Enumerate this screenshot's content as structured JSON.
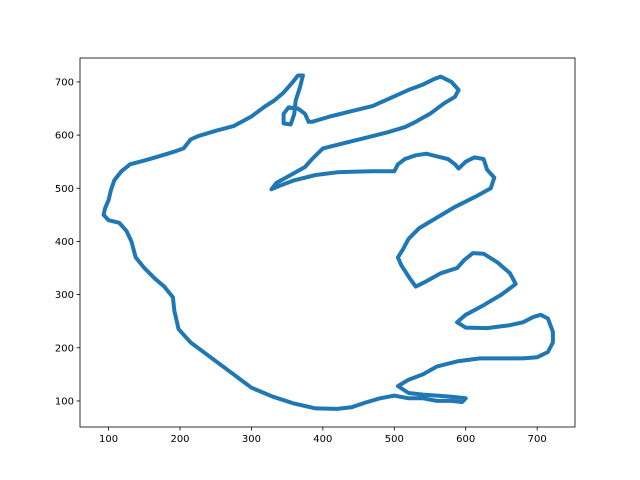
{
  "chart_data": {
    "type": "line",
    "color": "#1f77b4",
    "x": [
      380,
      375,
      365,
      352,
      345,
      345,
      355,
      360,
      362,
      368,
      372,
      365,
      358,
      345,
      332,
      320,
      300,
      275,
      250,
      225,
      215,
      205,
      190,
      170,
      150,
      130,
      118,
      108,
      103,
      100,
      95,
      93,
      100,
      115,
      125,
      132,
      138,
      150,
      165,
      178,
      190,
      192,
      198,
      215,
      240,
      270,
      300,
      330,
      360,
      390,
      420,
      440,
      460,
      480,
      500,
      520,
      540,
      560,
      580,
      595,
      600,
      580,
      560,
      540,
      520,
      505,
      520,
      540,
      560,
      590,
      620,
      650,
      680,
      700,
      715,
      722,
      722,
      715,
      705,
      695,
      680,
      660,
      630,
      600,
      588,
      600,
      625,
      650,
      670,
      662,
      645,
      625,
      610,
      598,
      588,
      565,
      545,
      530,
      522,
      510,
      505,
      512,
      520,
      535,
      560,
      585,
      615,
      635,
      640,
      630,
      625,
      612,
      600,
      590,
      585,
      575,
      560,
      545,
      530,
      515,
      505,
      500,
      470,
      440,
      420,
      390,
      360,
      340,
      328,
      335,
      355,
      375,
      385,
      400,
      430,
      460,
      490,
      515,
      530,
      550,
      570,
      585,
      590,
      580,
      565,
      555,
      540,
      520,
      495,
      470,
      440,
      410,
      385,
      380
    ],
    "values": [
      625,
      640,
      650,
      652,
      640,
      622,
      620,
      640,
      665,
      690,
      712,
      712,
      700,
      680,
      665,
      655,
      635,
      617,
      608,
      598,
      592,
      575,
      568,
      560,
      552,
      545,
      532,
      515,
      495,
      478,
      462,
      450,
      440,
      435,
      420,
      400,
      370,
      350,
      330,
      315,
      295,
      270,
      235,
      210,
      185,
      155,
      125,
      108,
      95,
      86,
      85,
      88,
      97,
      105,
      110,
      105,
      105,
      100,
      100,
      98,
      105,
      108,
      110,
      112,
      115,
      128,
      140,
      150,
      165,
      175,
      180,
      180,
      180,
      182,
      192,
      210,
      230,
      255,
      262,
      258,
      248,
      242,
      237,
      238,
      248,
      262,
      280,
      300,
      320,
      340,
      360,
      377,
      378,
      365,
      350,
      340,
      325,
      315,
      330,
      355,
      370,
      385,
      405,
      425,
      445,
      465,
      485,
      500,
      520,
      535,
      555,
      558,
      550,
      537,
      545,
      555,
      560,
      565,
      562,
      555,
      545,
      532,
      532,
      531,
      530,
      525,
      515,
      505,
      498,
      510,
      525,
      540,
      555,
      575,
      585,
      595,
      605,
      615,
      625,
      640,
      660,
      672,
      685,
      700,
      710,
      705,
      695,
      685,
      670,
      655,
      645,
      635,
      625,
      625
    ],
    "xlim": [
      60,
      753
    ],
    "ylim": [
      51,
      745
    ],
    "xticks": [
      100,
      200,
      300,
      400,
      500,
      600,
      700
    ],
    "yticks": [
      100,
      200,
      300,
      400,
      500,
      600,
      700
    ]
  }
}
